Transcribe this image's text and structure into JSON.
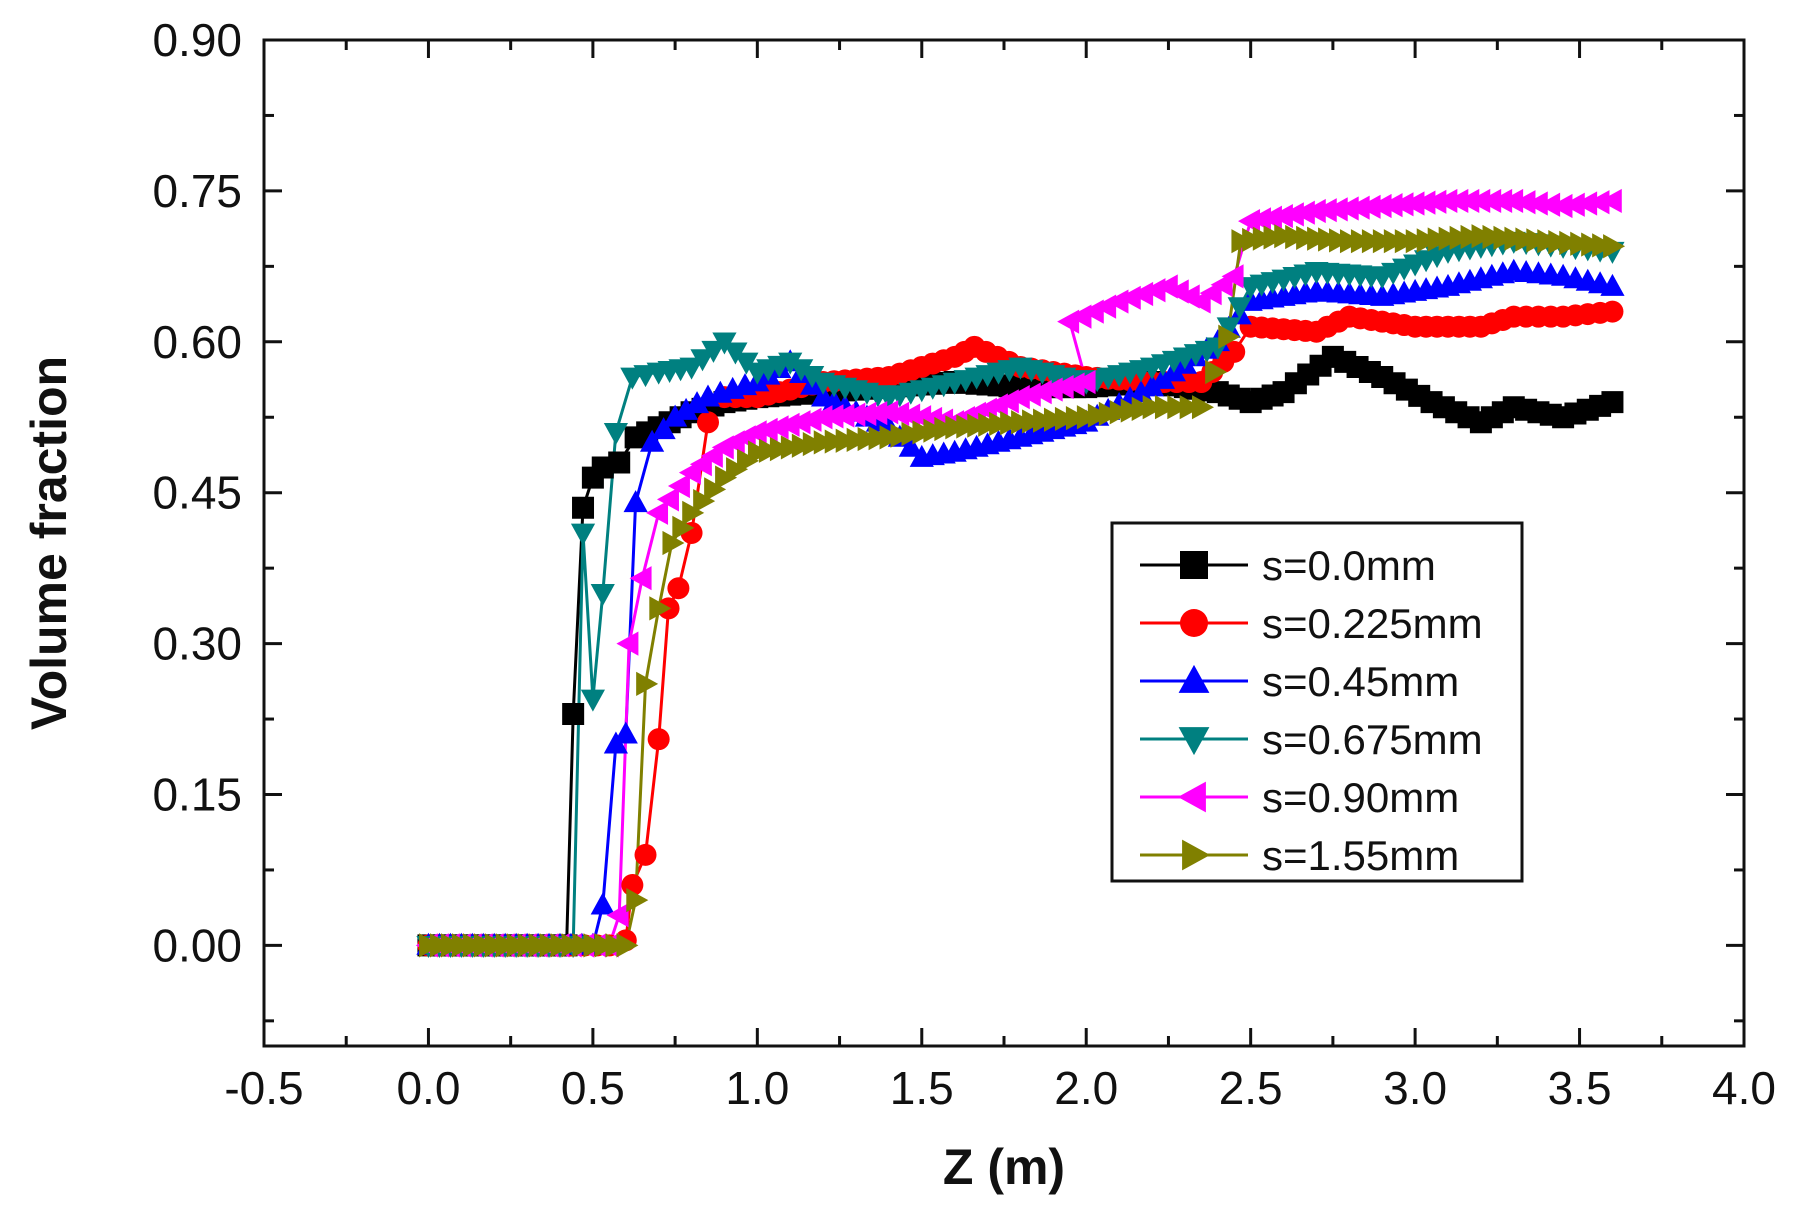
{
  "chart_data": {
    "type": "line",
    "title": "",
    "xlabel": "Z (m)",
    "ylabel": "Volume fraction",
    "xlim": [
      -0.5,
      4.0
    ],
    "ylim": [
      -0.1,
      0.9
    ],
    "xticks": [
      -0.5,
      0.0,
      0.5,
      1.0,
      1.5,
      2.0,
      2.5,
      3.0,
      3.5,
      4.0
    ],
    "xtick_labels": [
      "-0.5",
      "0.0",
      "0.5",
      "1.0",
      "1.5",
      "2.0",
      "2.5",
      "3.0",
      "3.5",
      "4.0"
    ],
    "yticks": [
      0.0,
      0.15,
      0.3,
      0.45,
      0.6,
      0.75,
      0.9
    ],
    "ytick_labels": [
      "0.00",
      "0.15",
      "0.30",
      "0.45",
      "0.60",
      "0.75",
      "0.90"
    ],
    "grid": false,
    "legend_position": "center-right",
    "series": [
      {
        "name": "s=0.0mm",
        "color": "#000000",
        "marker": "square",
        "points": [
          [
            0,
            0
          ],
          [
            0.1,
            0
          ],
          [
            0.2,
            0
          ],
          [
            0.3,
            0
          ],
          [
            0.4,
            0
          ],
          [
            0.42,
            0
          ],
          [
            0.44,
            0.23
          ],
          [
            0.47,
            0.435
          ],
          [
            0.5,
            0.465
          ],
          [
            0.53,
            0.475
          ],
          [
            0.58,
            0.48
          ],
          [
            0.63,
            0.505
          ],
          [
            0.7,
            0.515
          ],
          [
            0.8,
            0.53
          ],
          [
            0.9,
            0.54
          ],
          [
            1.0,
            0.545
          ],
          [
            1.2,
            0.55
          ],
          [
            1.4,
            0.555
          ],
          [
            1.6,
            0.56
          ],
          [
            1.8,
            0.555
          ],
          [
            2.0,
            0.555
          ],
          [
            2.2,
            0.56
          ],
          [
            2.4,
            0.55
          ],
          [
            2.5,
            0.54
          ],
          [
            2.6,
            0.55
          ],
          [
            2.75,
            0.585
          ],
          [
            2.9,
            0.565
          ],
          [
            3.05,
            0.54
          ],
          [
            3.2,
            0.52
          ],
          [
            3.3,
            0.535
          ],
          [
            3.45,
            0.525
          ],
          [
            3.6,
            0.54
          ]
        ]
      },
      {
        "name": "s=0.225mm",
        "color": "#ff0000",
        "marker": "circle",
        "points": [
          [
            0,
            0
          ],
          [
            0.2,
            0
          ],
          [
            0.4,
            0
          ],
          [
            0.55,
            0
          ],
          [
            0.6,
            0.005
          ],
          [
            0.62,
            0.06
          ],
          [
            0.66,
            0.09
          ],
          [
            0.7,
            0.205
          ],
          [
            0.73,
            0.335
          ],
          [
            0.76,
            0.355
          ],
          [
            0.8,
            0.41
          ],
          [
            0.85,
            0.52
          ],
          [
            0.9,
            0.545
          ],
          [
            1.0,
            0.545
          ],
          [
            1.2,
            0.56
          ],
          [
            1.4,
            0.565
          ],
          [
            1.6,
            0.585
          ],
          [
            1.66,
            0.595
          ],
          [
            1.8,
            0.575
          ],
          [
            2.0,
            0.565
          ],
          [
            2.2,
            0.56
          ],
          [
            2.35,
            0.56
          ],
          [
            2.45,
            0.59
          ],
          [
            2.5,
            0.615
          ],
          [
            2.7,
            0.61
          ],
          [
            2.8,
            0.625
          ],
          [
            3.0,
            0.615
          ],
          [
            3.2,
            0.615
          ],
          [
            3.3,
            0.625
          ],
          [
            3.45,
            0.625
          ],
          [
            3.6,
            0.63
          ]
        ]
      },
      {
        "name": "s=0.45mm",
        "color": "#0000ff",
        "marker": "triangle-up",
        "points": [
          [
            0,
            0
          ],
          [
            0.2,
            0
          ],
          [
            0.4,
            0
          ],
          [
            0.5,
            0
          ],
          [
            0.53,
            0.04
          ],
          [
            0.57,
            0.2
          ],
          [
            0.6,
            0.21
          ],
          [
            0.63,
            0.44
          ],
          [
            0.68,
            0.5
          ],
          [
            0.75,
            0.525
          ],
          [
            0.85,
            0.545
          ],
          [
            1.0,
            0.56
          ],
          [
            1.1,
            0.58
          ],
          [
            1.2,
            0.545
          ],
          [
            1.4,
            0.515
          ],
          [
            1.5,
            0.485
          ],
          [
            1.6,
            0.49
          ],
          [
            1.8,
            0.505
          ],
          [
            2.0,
            0.52
          ],
          [
            2.2,
            0.555
          ],
          [
            2.4,
            0.6
          ],
          [
            2.5,
            0.64
          ],
          [
            2.7,
            0.65
          ],
          [
            2.9,
            0.645
          ],
          [
            3.1,
            0.655
          ],
          [
            3.3,
            0.67
          ],
          [
            3.45,
            0.665
          ],
          [
            3.6,
            0.655
          ]
        ]
      },
      {
        "name": "s=0.675mm",
        "color": "#008080",
        "marker": "triangle-down",
        "points": [
          [
            0,
            0
          ],
          [
            0.2,
            0
          ],
          [
            0.4,
            0
          ],
          [
            0.44,
            0
          ],
          [
            0.47,
            0.41
          ],
          [
            0.5,
            0.245
          ],
          [
            0.53,
            0.35
          ],
          [
            0.57,
            0.51
          ],
          [
            0.62,
            0.565
          ],
          [
            0.7,
            0.57
          ],
          [
            0.8,
            0.575
          ],
          [
            0.9,
            0.6
          ],
          [
            1.0,
            0.57
          ],
          [
            1.1,
            0.58
          ],
          [
            1.2,
            0.56
          ],
          [
            1.4,
            0.545
          ],
          [
            1.6,
            0.56
          ],
          [
            1.8,
            0.575
          ],
          [
            2.0,
            0.56
          ],
          [
            2.2,
            0.575
          ],
          [
            2.4,
            0.595
          ],
          [
            2.5,
            0.655
          ],
          [
            2.7,
            0.67
          ],
          [
            2.9,
            0.665
          ],
          [
            3.1,
            0.69
          ],
          [
            3.3,
            0.7
          ],
          [
            3.45,
            0.695
          ],
          [
            3.6,
            0.69
          ]
        ]
      },
      {
        "name": "s=0.90mm",
        "color": "#ff00ff",
        "marker": "triangle-left",
        "points": [
          [
            0,
            0
          ],
          [
            0.2,
            0
          ],
          [
            0.4,
            0
          ],
          [
            0.55,
            0
          ],
          [
            0.58,
            0.03
          ],
          [
            0.61,
            0.3
          ],
          [
            0.65,
            0.365
          ],
          [
            0.7,
            0.43
          ],
          [
            0.8,
            0.47
          ],
          [
            0.9,
            0.495
          ],
          [
            1.0,
            0.51
          ],
          [
            1.2,
            0.525
          ],
          [
            1.4,
            0.53
          ],
          [
            1.6,
            0.52
          ],
          [
            1.8,
            0.545
          ],
          [
            2.0,
            0.56
          ],
          [
            1.95,
            0.62
          ],
          [
            2.1,
            0.64
          ],
          [
            2.25,
            0.655
          ],
          [
            2.35,
            0.64
          ],
          [
            2.45,
            0.665
          ],
          [
            2.5,
            0.72
          ],
          [
            2.7,
            0.73
          ],
          [
            2.9,
            0.735
          ],
          [
            3.1,
            0.74
          ],
          [
            3.3,
            0.74
          ],
          [
            3.45,
            0.735
          ],
          [
            3.6,
            0.74
          ]
        ]
      },
      {
        "name": "s=1.55mm",
        "color": "#808000",
        "marker": "triangle-right",
        "points": [
          [
            0,
            0
          ],
          [
            0.2,
            0
          ],
          [
            0.4,
            0
          ],
          [
            0.6,
            0
          ],
          [
            0.63,
            0.045
          ],
          [
            0.66,
            0.26
          ],
          [
            0.7,
            0.335
          ],
          [
            0.74,
            0.4
          ],
          [
            0.8,
            0.43
          ],
          [
            0.9,
            0.465
          ],
          [
            1.0,
            0.49
          ],
          [
            1.2,
            0.5
          ],
          [
            1.4,
            0.505
          ],
          [
            1.6,
            0.515
          ],
          [
            1.8,
            0.52
          ],
          [
            2.0,
            0.525
          ],
          [
            2.2,
            0.535
          ],
          [
            2.35,
            0.535
          ],
          [
            2.43,
            0.605
          ],
          [
            2.47,
            0.7
          ],
          [
            2.6,
            0.705
          ],
          [
            2.8,
            0.7
          ],
          [
            3.0,
            0.7
          ],
          [
            3.2,
            0.705
          ],
          [
            3.4,
            0.7
          ],
          [
            3.6,
            0.695
          ]
        ]
      }
    ]
  }
}
